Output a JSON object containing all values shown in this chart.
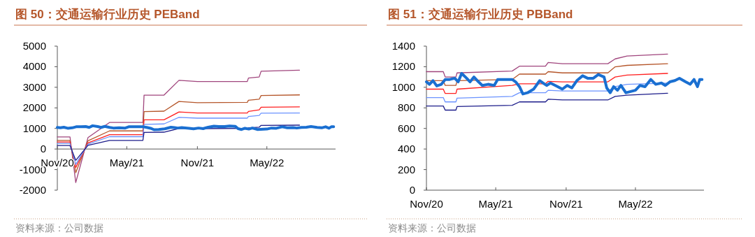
{
  "chart_data": [
    {
      "type": "line",
      "title": "图 50：交通运输行业历史 PEBand",
      "annotations": [
        "资料来源：公司数据"
      ],
      "xlim": [
        "2020-11-01",
        "2022-10-27"
      ],
      "xticks": [
        {
          "value": "2020-11-01",
          "label": "Nov/20"
        },
        {
          "value": "2021-05-01",
          "label": "May/21"
        },
        {
          "value": "2021-11-01",
          "label": "Nov/21"
        },
        {
          "value": "2022-05-01",
          "label": "May/22"
        }
      ],
      "ylim": [
        -2000,
        5000
      ],
      "yticks": [
        -2000,
        -1000,
        0,
        1000,
        2000,
        3000,
        4000,
        5000
      ],
      "grid": false,
      "series": [
        {
          "color": "#a0457d",
          "x": [
            "2020-11-01",
            "2020-12-04",
            "2020-12-19",
            "2021-01-20",
            "2021-03-17",
            "2021-06-12",
            "2021-06-15",
            "2021-08-06",
            "2021-09-14",
            "2021-11-01",
            "2022-03-11",
            "2022-03-14",
            "2022-04-11",
            "2022-04-16",
            "2022-07-25"
          ],
          "values": [
            590,
            590,
            -1630,
            560,
            1290,
            1290,
            2620,
            2620,
            3340,
            3280,
            3280,
            3450,
            3500,
            3780,
            3830
          ]
        },
        {
          "color": "#b5562a",
          "x": [
            "2020-11-01",
            "2020-12-04",
            "2020-12-19",
            "2021-01-20",
            "2021-03-17",
            "2021-06-12",
            "2021-06-15",
            "2021-08-06",
            "2021-09-14",
            "2021-11-01",
            "2022-03-11",
            "2022-03-14",
            "2022-04-11",
            "2022-04-16",
            "2022-07-25"
          ],
          "values": [
            420,
            420,
            -1150,
            400,
            880,
            880,
            1820,
            1840,
            2310,
            2250,
            2270,
            2370,
            2420,
            2600,
            2630
          ]
        },
        {
          "color": "#ff2020",
          "x": [
            "2020-11-01",
            "2020-12-04",
            "2020-12-19",
            "2021-01-20",
            "2021-03-17",
            "2021-06-12",
            "2021-06-15",
            "2021-08-06",
            "2021-09-14",
            "2021-11-01",
            "2022-03-11",
            "2022-03-14",
            "2022-04-11",
            "2022-04-16",
            "2022-07-25"
          ],
          "values": [
            340,
            340,
            -900,
            300,
            700,
            700,
            1420,
            1420,
            1800,
            1750,
            1750,
            1830,
            1900,
            2030,
            2050
          ]
        },
        {
          "color": "#6b93ff",
          "x": [
            "2020-11-01",
            "2020-12-04",
            "2020-12-19",
            "2021-01-20",
            "2021-03-17",
            "2021-06-12",
            "2021-06-15",
            "2021-08-06",
            "2021-09-14",
            "2021-11-01",
            "2022-03-11",
            "2022-03-14",
            "2022-04-11",
            "2022-04-16",
            "2022-07-25"
          ],
          "values": [
            270,
            270,
            -750,
            240,
            600,
            600,
            1200,
            1220,
            1540,
            1500,
            1500,
            1580,
            1630,
            1740,
            1750
          ]
        },
        {
          "color": "#1c1c8a",
          "x": [
            "2020-11-01",
            "2020-12-04",
            "2020-12-19",
            "2021-01-20",
            "2021-03-17",
            "2021-06-12",
            "2021-06-15",
            "2021-08-06",
            "2021-09-14",
            "2021-11-01",
            "2022-03-11",
            "2022-03-14",
            "2022-04-11",
            "2022-04-16",
            "2022-07-25"
          ],
          "values": [
            170,
            170,
            -550,
            180,
            420,
            420,
            810,
            820,
            1000,
            990,
            1000,
            1030,
            1060,
            1150,
            1160
          ]
        },
        {
          "color": "#1a6fd1",
          "x": [
            "2020-11-01",
            "2020-11-09",
            "2020-11-18",
            "2020-11-28",
            "2020-12-10",
            "2020-12-20",
            "2021-01-01",
            "2021-01-14",
            "2021-01-23",
            "2021-02-01",
            "2021-02-14",
            "2021-02-23",
            "2021-03-05",
            "2021-03-17",
            "2021-03-27",
            "2021-04-11",
            "2021-04-27",
            "2021-05-06",
            "2021-05-25",
            "2021-06-13",
            "2021-06-22",
            "2021-07-02",
            "2021-07-11",
            "2021-07-23",
            "2021-08-08",
            "2021-08-24",
            "2021-09-02",
            "2021-09-11",
            "2021-09-21",
            "2021-10-10",
            "2021-10-22",
            "2021-11-04",
            "2021-11-16",
            "2021-11-29",
            "2021-12-14",
            "2021-12-27",
            "2022-01-11",
            "2022-01-24",
            "2022-02-08",
            "2022-02-15",
            "2022-02-24",
            "2022-03-05",
            "2022-03-15",
            "2022-03-24",
            "2022-04-06",
            "2022-04-15",
            "2022-05-01",
            "2022-05-13",
            "2022-05-26",
            "2022-06-10",
            "2022-06-23",
            "2022-07-08",
            "2022-07-18",
            "2022-07-30",
            "2022-08-12",
            "2022-08-24",
            "2022-09-09",
            "2022-09-21",
            "2022-10-01",
            "2022-10-10",
            "2022-10-16",
            "2022-10-22"
          ],
          "values": [
            1050,
            1030,
            1060,
            1010,
            1030,
            1080,
            1080,
            1090,
            1050,
            1130,
            1090,
            1050,
            1100,
            1050,
            1020,
            1030,
            1020,
            1080,
            1080,
            1080,
            1050,
            1010,
            940,
            950,
            980,
            1060,
            1040,
            1020,
            1040,
            1010,
            980,
            1020,
            990,
            1060,
            1110,
            1090,
            1090,
            1120,
            1100,
            990,
            950,
            1010,
            970,
            1020,
            950,
            960,
            970,
            1020,
            1010,
            1080,
            1030,
            1040,
            1020,
            1050,
            1060,
            1090,
            1050,
            1030,
            1080,
            1010,
            1080,
            1080
          ]
        }
      ]
    },
    {
      "type": "line",
      "title": "图 51：交通运输行业历史 PBBand",
      "annotations": [
        "资料来源：公司数据"
      ],
      "xlim": [
        "2020-11-01",
        "2022-10-27"
      ],
      "xticks": [
        {
          "value": "2020-11-01",
          "label": "Nov/20"
        },
        {
          "value": "2021-05-01",
          "label": "May/21"
        },
        {
          "value": "2021-11-01",
          "label": "Nov/21"
        },
        {
          "value": "2022-05-01",
          "label": "May/22"
        }
      ],
      "ylim": [
        0,
        1400
      ],
      "yticks": [
        0,
        200,
        400,
        600,
        800,
        1000,
        1200,
        1400
      ],
      "grid": false,
      "series": [
        {
          "color": "#a0457d",
          "x": [
            "2020-11-01",
            "2020-12-15",
            "2020-12-20",
            "2021-01-17",
            "2021-01-20",
            "2021-06-13",
            "2021-07-02",
            "2021-09-08",
            "2021-09-15",
            "2021-10-22",
            "2022-02-18",
            "2022-03-09",
            "2022-04-09",
            "2022-07-24"
          ],
          "values": [
            1152,
            1152,
            1100,
            1100,
            1140,
            1158,
            1205,
            1205,
            1241,
            1229,
            1229,
            1276,
            1304,
            1323
          ]
        },
        {
          "color": "#b5562a",
          "x": [
            "2020-11-01",
            "2020-12-15",
            "2020-12-20",
            "2021-01-17",
            "2021-01-20",
            "2021-06-13",
            "2021-07-02",
            "2021-09-08",
            "2021-09-15",
            "2021-10-22",
            "2022-02-18",
            "2022-03-09",
            "2022-04-09",
            "2022-07-24"
          ],
          "values": [
            1065,
            1065,
            1018,
            1018,
            1065,
            1076,
            1128,
            1128,
            1152,
            1140,
            1140,
            1199,
            1213,
            1229
          ]
        },
        {
          "color": "#ff2020",
          "x": [
            "2020-11-01",
            "2020-12-15",
            "2020-12-20",
            "2021-01-17",
            "2021-01-20",
            "2021-06-13",
            "2021-07-02",
            "2021-09-08",
            "2021-09-15",
            "2021-10-22",
            "2022-02-18",
            "2022-03-09",
            "2022-04-09",
            "2022-07-24"
          ],
          "values": [
            982,
            982,
            940,
            940,
            982,
            1018,
            1034,
            1034,
            1058,
            1053,
            1053,
            1100,
            1119,
            1135
          ]
        },
        {
          "color": "#6b93ff",
          "x": [
            "2020-11-01",
            "2020-12-15",
            "2020-12-20",
            "2021-01-17",
            "2021-01-20",
            "2021-06-13",
            "2021-07-02",
            "2021-09-08",
            "2021-09-15",
            "2021-10-22",
            "2022-02-18",
            "2022-03-09",
            "2022-04-09",
            "2022-07-24"
          ],
          "values": [
            900,
            900,
            858,
            858,
            895,
            912,
            947,
            947,
            971,
            964,
            964,
            1006,
            1029,
            1041
          ]
        },
        {
          "color": "#1c1c8a",
          "x": [
            "2020-11-01",
            "2020-12-15",
            "2020-12-20",
            "2021-01-17",
            "2021-01-20",
            "2021-06-13",
            "2021-07-02",
            "2021-09-08",
            "2021-09-15",
            "2021-10-22",
            "2022-02-18",
            "2022-03-09",
            "2022-04-09",
            "2022-07-24"
          ],
          "values": [
            818,
            818,
            778,
            778,
            813,
            825,
            858,
            858,
            884,
            877,
            877,
            912,
            924,
            942
          ]
        },
        {
          "color": "#1a6fd1",
          "x": [
            "2020-11-01",
            "2020-11-09",
            "2020-11-18",
            "2020-11-28",
            "2020-12-10",
            "2020-12-20",
            "2021-01-01",
            "2021-01-14",
            "2021-01-23",
            "2021-02-01",
            "2021-02-14",
            "2021-02-23",
            "2021-03-05",
            "2021-03-17",
            "2021-03-27",
            "2021-04-11",
            "2021-04-27",
            "2021-05-06",
            "2021-05-25",
            "2021-06-13",
            "2021-06-22",
            "2021-07-02",
            "2021-07-11",
            "2021-07-23",
            "2021-08-08",
            "2021-08-24",
            "2021-09-02",
            "2021-09-11",
            "2021-09-21",
            "2021-10-10",
            "2021-10-22",
            "2021-11-04",
            "2021-11-16",
            "2021-11-29",
            "2021-12-14",
            "2021-12-27",
            "2022-01-11",
            "2022-01-24",
            "2022-02-08",
            "2022-02-15",
            "2022-02-24",
            "2022-03-05",
            "2022-03-15",
            "2022-03-24",
            "2022-04-06",
            "2022-04-15",
            "2022-05-01",
            "2022-05-13",
            "2022-05-26",
            "2022-06-10",
            "2022-06-23",
            "2022-07-08",
            "2022-07-18",
            "2022-07-30",
            "2022-08-12",
            "2022-08-24",
            "2022-09-09",
            "2022-09-21",
            "2022-10-01",
            "2022-10-10",
            "2022-10-16",
            "2022-10-22"
          ],
          "values": [
            1053,
            1029,
            1065,
            1013,
            1029,
            1076,
            1076,
            1088,
            1053,
            1135,
            1088,
            1053,
            1100,
            1053,
            1018,
            1029,
            1018,
            1076,
            1076,
            1076,
            1053,
            1006,
            935,
            947,
            982,
            1065,
            1041,
            1018,
            1041,
            1006,
            982,
            1018,
            994,
            1065,
            1112,
            1088,
            1088,
            1124,
            1100,
            994,
            947,
            1006,
            971,
            1018,
            947,
            956,
            971,
            1018,
            1006,
            1076,
            1029,
            1041,
            1018,
            1053,
            1065,
            1088,
            1053,
            1029,
            1076,
            1006,
            1076,
            1076
          ]
        }
      ]
    }
  ]
}
